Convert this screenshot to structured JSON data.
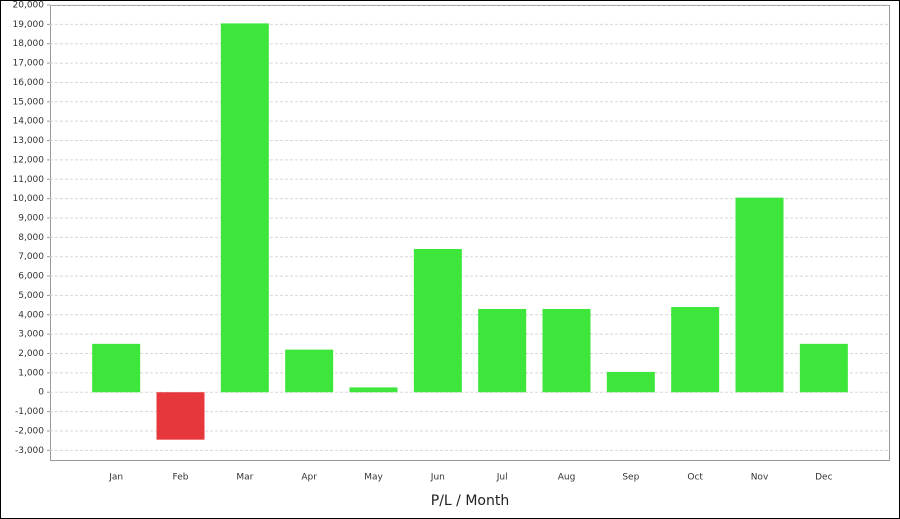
{
  "chart_data": {
    "type": "bar",
    "x_label": "P/L / Month",
    "categories": [
      "Jan",
      "Feb",
      "Mar",
      "Apr",
      "May",
      "Jun",
      "Jul",
      "Aug",
      "Sep",
      "Oct",
      "Nov",
      "Dec"
    ],
    "values": [
      2500,
      -2450,
      19050,
      2200,
      250,
      7400,
      4300,
      4300,
      1050,
      4400,
      10050,
      2500
    ],
    "color": "#3ee63c",
    "negative_color": "#e6383c",
    "ylim": [
      -3500,
      20000
    ],
    "yticks": [
      {
        "value": -3000,
        "label": "-3,000"
      },
      {
        "value": -2000,
        "label": "-2,000"
      },
      {
        "value": -1000,
        "label": "-1,000"
      },
      0,
      {
        "value": 1000,
        "label": "1,000"
      },
      {
        "value": 2000,
        "label": "2,000"
      },
      {
        "value": 3000,
        "label": "3,000"
      },
      {
        "value": 4000,
        "label": "4,000"
      },
      {
        "value": 5000,
        "label": "5,000"
      },
      {
        "value": 6000,
        "label": "6,000"
      },
      {
        "value": 7000,
        "label": "7,000"
      },
      {
        "value": 8000,
        "label": "8,000"
      },
      {
        "value": 9000,
        "label": "9,000"
      },
      {
        "value": 10000,
        "label": "10,000"
      },
      {
        "value": 11000,
        "label": "11,000"
      },
      {
        "value": 12000,
        "label": "12,000"
      },
      {
        "value": 13000,
        "label": "13,000"
      },
      {
        "value": 14000,
        "label": "14,000"
      },
      {
        "value": 15000,
        "label": "15,000"
      },
      {
        "value": 16000,
        "label": "16,000"
      },
      {
        "value": 17000,
        "label": "17,000"
      },
      {
        "value": 18000,
        "label": "18,000"
      },
      {
        "value": 19000,
        "label": "19,000"
      },
      {
        "value": 20000,
        "label": "20,000"
      }
    ],
    "grid": true
  }
}
